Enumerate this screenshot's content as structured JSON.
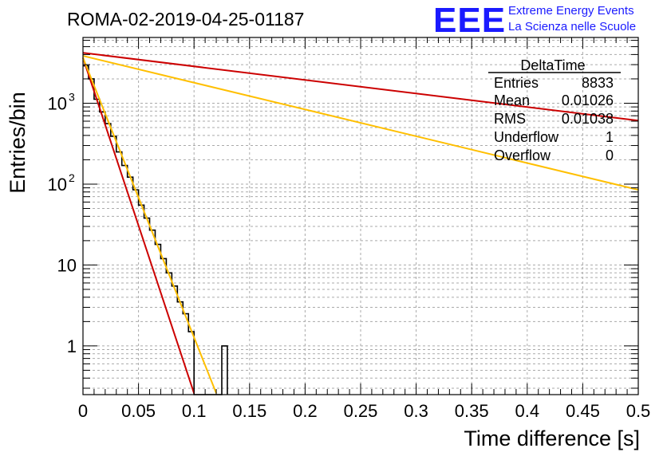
{
  "title": "ROMA-02-2019-04-25-01187",
  "logo": {
    "mark": "EEE",
    "line1": "Extreme Energy Events",
    "line2": "La Scienza nelle Scuole",
    "color": "#1a1aff"
  },
  "stats": {
    "name": "DeltaTime",
    "rows": [
      {
        "label": "Entries",
        "value": "8833"
      },
      {
        "label": "Mean",
        "value": "0.01026"
      },
      {
        "label": "RMS",
        "value": "0.01038"
      },
      {
        "label": "Underflow",
        "value": "1"
      },
      {
        "label": "Overflow",
        "value": "0"
      }
    ]
  },
  "chart_data": {
    "type": "line",
    "xlabel": "Time difference [s]",
    "ylabel": "Entries/bin",
    "xlim": [
      0,
      0.5
    ],
    "ylim": [
      0.25,
      6500
    ],
    "yscale": "log",
    "grid": true,
    "legend": "top-right",
    "x_ticks": [
      "0",
      "0.05",
      "0.1",
      "0.15",
      "0.2",
      "0.25",
      "0.3",
      "0.35",
      "0.4",
      "0.45",
      "0.5"
    ],
    "y_ticks": [
      {
        "value": 1,
        "label": "1"
      },
      {
        "value": 10,
        "label": "10"
      },
      {
        "value": 100,
        "label": "10",
        "sup": "2"
      },
      {
        "value": 1000,
        "label": "10",
        "sup": "3"
      }
    ],
    "histogram": {
      "color": "#000000",
      "bin_width": 0.005,
      "counts": [
        2900,
        2000,
        1120,
        780,
        560,
        390,
        250,
        170,
        122,
        85,
        55,
        38,
        27,
        18,
        12,
        8,
        5.5,
        3.5,
        2.5,
        1.5,
        0.2,
        0.2,
        0.2,
        0.2,
        0.2,
        1
      ]
    },
    "series": [
      {
        "color": "#cc0000",
        "points": [
          [
            0,
            3650
          ],
          [
            0.1,
            0.26
          ]
        ]
      },
      {
        "color": "#ffbf00",
        "points": [
          [
            0,
            3650
          ],
          [
            0.12,
            0.26
          ]
        ]
      },
      {
        "color": "#cc0000",
        "points": [
          [
            0,
            4200
          ],
          [
            0.5,
            610
          ]
        ]
      },
      {
        "color": "#ffbf00",
        "points": [
          [
            0,
            3850
          ],
          [
            0.5,
            85
          ]
        ]
      }
    ]
  }
}
